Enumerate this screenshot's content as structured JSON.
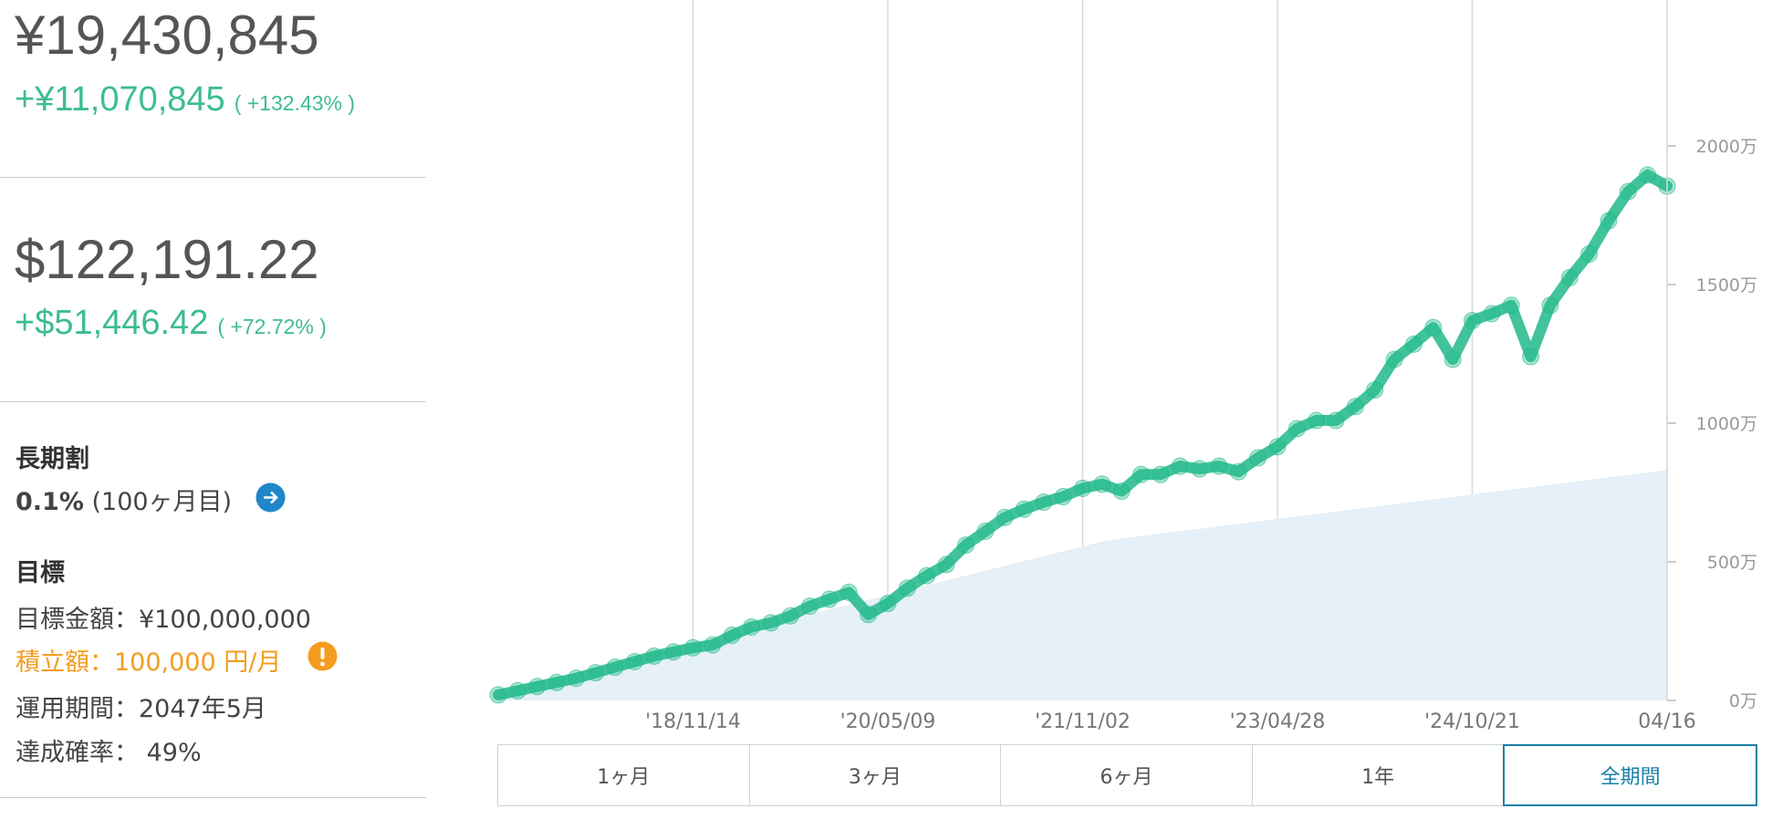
{
  "summary": {
    "yen_total": "¥19,430,845",
    "yen_gain": "+¥11,070,845",
    "yen_gain_pct": "( +132.43% )",
    "usd_total": "$122,191.22",
    "usd_gain": "+$51,446.42",
    "usd_gain_pct": "( +72.72% )",
    "discount_title": "長期割",
    "discount_rate": "0.1%",
    "discount_months": "(100ヶ月目)",
    "goal_title": "目標",
    "goal_amount": "目標金額：¥100,000,000",
    "monthly": "積立額：100,000 円/月",
    "period": "運用期間：2047年5月",
    "probability": "達成確率： 49%"
  },
  "range_buttons": [
    "1ヶ月",
    "3ヶ月",
    "6ヶ月",
    "1年",
    "全期間"
  ],
  "selected_button": 4,
  "chart_data": {
    "type": "line",
    "categories": [
      null,
      null,
      null,
      null,
      null,
      null,
      null,
      null,
      null,
      null,
      "'18/11/14",
      null,
      null,
      null,
      null,
      null,
      null,
      null,
      null,
      null,
      "'20/05/09",
      null,
      null,
      null,
      null,
      null,
      null,
      null,
      null,
      null,
      "'21/11/02",
      null,
      null,
      null,
      null,
      null,
      null,
      null,
      null,
      null,
      "'23/04/28",
      null,
      null,
      null,
      null,
      null,
      null,
      null,
      null,
      null,
      "'24/10/21",
      null,
      null,
      null,
      null,
      null,
      null,
      null,
      null,
      null,
      "04/16"
    ],
    "series": [
      {
        "style": "area",
        "color": "#e5f0f8",
        "values": [
          30,
          48,
          65,
          83,
          100,
          118,
          135,
          153,
          170,
          188,
          205,
          223,
          240,
          258,
          275,
          293,
          310,
          328,
          345,
          363,
          380,
          398,
          415,
          433,
          450,
          468,
          485,
          503,
          520,
          538,
          555,
          573,
          584,
          593,
          602,
          611,
          619,
          628,
          637,
          646,
          655,
          664,
          672,
          681,
          690,
          699,
          708,
          716,
          725,
          734,
          743,
          752,
          761,
          769,
          778,
          787,
          796,
          805,
          813,
          822,
          831
        ]
      },
      {
        "style": "line",
        "color": "#20b98a",
        "values": [
          20,
          35,
          50,
          65,
          80,
          100,
          120,
          140,
          160,
          175,
          190,
          200,
          235,
          265,
          280,
          305,
          340,
          365,
          390,
          310,
          350,
          405,
          450,
          490,
          560,
          610,
          660,
          690,
          715,
          735,
          765,
          780,
          755,
          815,
          815,
          845,
          835,
          845,
          825,
          875,
          915,
          980,
          1010,
          1010,
          1060,
          1120,
          1230,
          1285,
          1345,
          1230,
          1370,
          1395,
          1425,
          1240,
          1425,
          1525,
          1610,
          1730,
          1835,
          1895,
          1855
        ]
      }
    ],
    "ylim": [
      0,
      2500
    ],
    "yticks": [
      {
        "value": 0,
        "label": "0万"
      },
      {
        "value": 500,
        "label": "500万"
      },
      {
        "value": 1000,
        "label": "1000万"
      },
      {
        "value": 1500,
        "label": "1500万"
      },
      {
        "value": 2000,
        "label": "2000万"
      }
    ],
    "grid": true
  }
}
